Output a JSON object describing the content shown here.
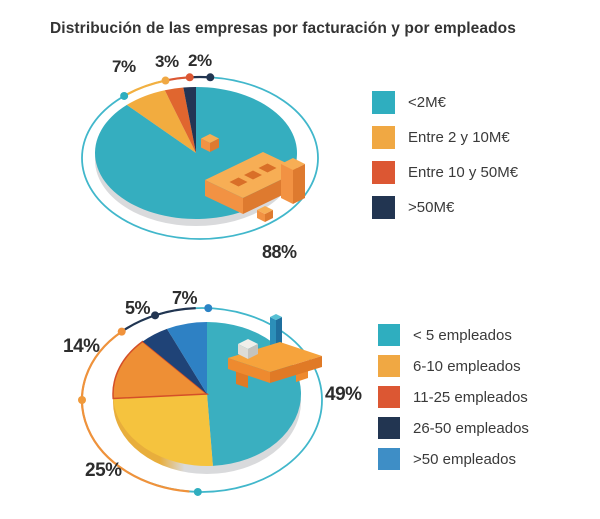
{
  "title": "Distribución de las empresas por facturación y por empleados",
  "icons": {
    "chart1": "isometric-building-icon",
    "chart2": "isometric-factory-platform-icon"
  },
  "chart_data": [
    {
      "type": "pie",
      "name": "distribucion-por-facturacion",
      "style": "3d-pie-with-orbit-ring",
      "legend_position": "right",
      "slices": [
        {
          "category": "<2M€",
          "value": 88,
          "pct": "88%",
          "color": "#2FAEBF",
          "slice_color": "#35AEBF"
        },
        {
          "category": "Entre 2 y 10M€",
          "value": 7,
          "pct": "7%",
          "color": "#F0A843",
          "slice_color": "#F2AC3F"
        },
        {
          "category": "Entre 10 y 50M€",
          "value": 3,
          "pct": "3%",
          "color": "#DC5733",
          "slice_color": "#E0662F"
        },
        {
          "category": ">50M€",
          "value": 2,
          "pct": "2%",
          "color": "#223551",
          "slice_color": "#233554"
        }
      ]
    },
    {
      "type": "pie",
      "name": "distribucion-por-empleados",
      "style": "3d-pie-with-orbit-ring",
      "legend_position": "right",
      "slices": [
        {
          "category": "< 5 empleados",
          "value": 49,
          "pct": "49%",
          "color": "#2FAEBF",
          "slice_color": "#3AAFC0"
        },
        {
          "category": "6-10 empleados",
          "value": 25,
          "pct": "25%",
          "color": "#F0A843",
          "slice_color": "#F5C33E"
        },
        {
          "category": "11-25 empleados",
          "value": 14,
          "pct": "14%",
          "color": "#DC5733",
          "slice_color": "#EE8F35"
        },
        {
          "category": "26-50 empleados",
          "value": 5,
          "pct": "5%",
          "color": "#223551",
          "slice_color": "#1F4377"
        },
        {
          "category": ">50 empleados",
          "value": 7,
          "pct": "7%",
          "color": "#3E8EC6",
          "slice_color": "#2E81C4"
        }
      ]
    }
  ]
}
